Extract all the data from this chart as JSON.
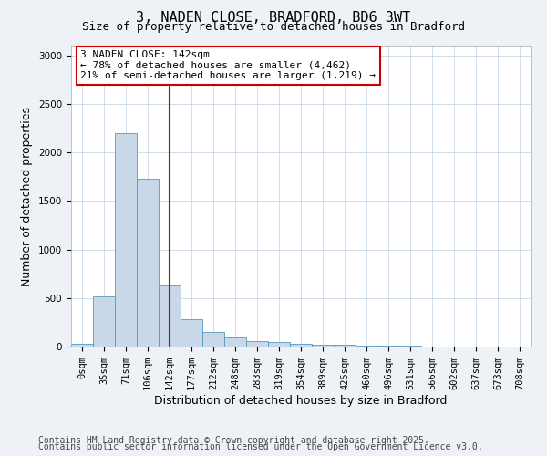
{
  "title_line1": "3, NADEN CLOSE, BRADFORD, BD6 3WT",
  "title_line2": "Size of property relative to detached houses in Bradford",
  "xlabel": "Distribution of detached houses by size in Bradford",
  "ylabel": "Number of detached properties",
  "categories": [
    "0sqm",
    "35sqm",
    "71sqm",
    "106sqm",
    "142sqm",
    "177sqm",
    "212sqm",
    "248sqm",
    "283sqm",
    "319sqm",
    "354sqm",
    "389sqm",
    "425sqm",
    "460sqm",
    "496sqm",
    "531sqm",
    "566sqm",
    "602sqm",
    "637sqm",
    "673sqm",
    "708sqm"
  ],
  "values": [
    30,
    520,
    2200,
    1730,
    630,
    280,
    150,
    90,
    55,
    45,
    30,
    20,
    15,
    10,
    5,
    5,
    2,
    2,
    2,
    1,
    1
  ],
  "bar_color": "#c8d8e8",
  "bar_edge_color": "#5599bb",
  "vline_x": 4,
  "vline_color": "#cc0000",
  "annotation_title": "3 NADEN CLOSE: 142sqm",
  "annotation_line1": "← 78% of detached houses are smaller (4,462)",
  "annotation_line2": "21% of semi-detached houses are larger (1,219) →",
  "annotation_box_color": "#cc0000",
  "ylim": [
    0,
    3100
  ],
  "yticks": [
    0,
    500,
    1000,
    1500,
    2000,
    2500,
    3000
  ],
  "footnote1": "Contains HM Land Registry data © Crown copyright and database right 2025.",
  "footnote2": "Contains public sector information licensed under the Open Government Licence v3.0.",
  "bg_color": "#eef2f7",
  "plot_bg_color": "#ffffff",
  "title_fontsize": 11,
  "subtitle_fontsize": 9,
  "axis_label_fontsize": 9,
  "tick_fontsize": 7.5,
  "footnote_fontsize": 7,
  "annotation_fontsize": 8
}
